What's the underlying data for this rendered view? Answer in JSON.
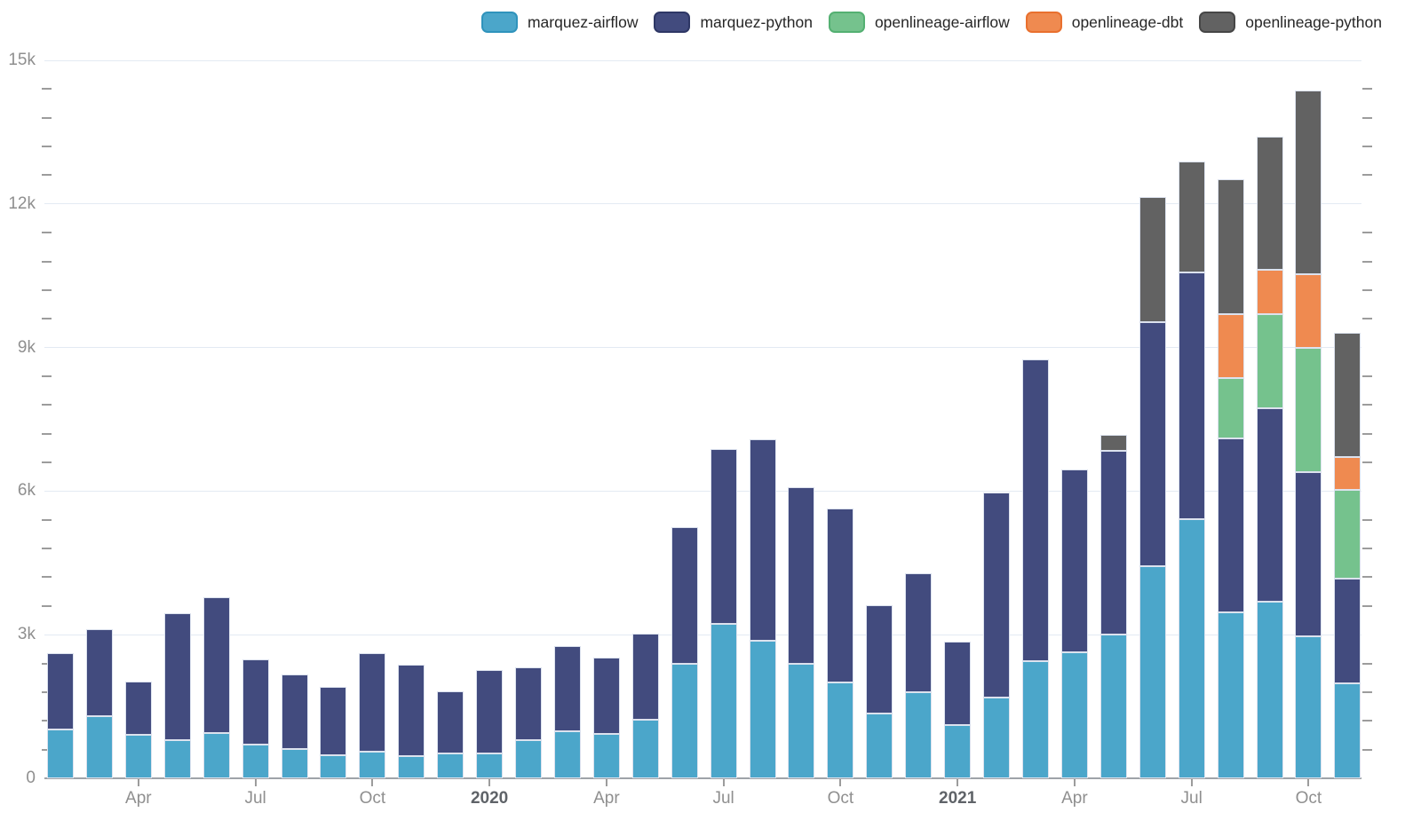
{
  "legend": {
    "items": [
      {
        "label": "marquez-airflow",
        "color": "#4BA6CA",
        "border": "#2F93BC"
      },
      {
        "label": "marquez-python",
        "color": "#424B7E",
        "border": "#2E3765"
      },
      {
        "label": "openlineage-airflow",
        "color": "#75C28D",
        "border": "#54B072"
      },
      {
        "label": "openlineage-dbt",
        "color": "#EF8A50",
        "border": "#E9702E"
      },
      {
        "label": "openlineage-python",
        "color": "#626262",
        "border": "#464646"
      }
    ]
  },
  "theme": {
    "background": "#FFFFFF",
    "gridline": "#E3EAF3",
    "axis_line": "#9EA3A8",
    "tick_mark": "#9C9C9C",
    "axis_label": "#8F8F8F",
    "year_label": "#5F6368",
    "legend_text": "#262626"
  },
  "chart_data": {
    "type": "bar",
    "stacked": true,
    "title": "",
    "xlabel": "",
    "ylabel": "",
    "ylim": [
      0,
      15000
    ],
    "y_axis": {
      "major_tick_values": [
        0,
        3000,
        6000,
        9000,
        12000,
        15000
      ],
      "major_tick_labels": [
        "0",
        "3k",
        "6k",
        "9k",
        "12k",
        "15k"
      ],
      "minor_tick_step": 600,
      "grid": true
    },
    "x_axis": {
      "ticks": [
        {
          "label": "Apr",
          "month": 2,
          "bold": false
        },
        {
          "label": "Jul",
          "month": 5,
          "bold": false
        },
        {
          "label": "Oct",
          "month": 8,
          "bold": false
        },
        {
          "label": "2020",
          "month": 11,
          "bold": true
        },
        {
          "label": "Apr",
          "month": 14,
          "bold": false
        },
        {
          "label": "Jul",
          "month": 17,
          "bold": false
        },
        {
          "label": "Oct",
          "month": 20,
          "bold": false
        },
        {
          "label": "2021",
          "month": 23,
          "bold": true
        },
        {
          "label": "Apr",
          "month": 26,
          "bold": false
        },
        {
          "label": "Jul",
          "month": 29,
          "bold": false
        },
        {
          "label": "Oct",
          "month": 32,
          "bold": false
        }
      ]
    },
    "categories": [
      "Feb 2019",
      "Mar 2019",
      "Apr 2019",
      "May 2019",
      "Jun 2019",
      "Jul 2019",
      "Aug 2019",
      "Sep 2019",
      "Oct 2019",
      "Nov 2019",
      "Dec 2019",
      "Jan 2020",
      "Feb 2020",
      "Mar 2020",
      "Apr 2020",
      "May 2020",
      "Jun 2020",
      "Jul 2020",
      "Aug 2020",
      "Sep 2020",
      "Oct 2020",
      "Nov 2020",
      "Dec 2020",
      "Jan 2021",
      "Feb 2021",
      "Mar 2021",
      "Apr 2021",
      "May 2021",
      "Jun 2021",
      "Jul 2021",
      "Aug 2021",
      "Sep 2021",
      "Oct 2021",
      "Nov 2021"
    ],
    "series": [
      {
        "name": "marquez-airflow",
        "values": [
          1020,
          1290,
          900,
          790,
          950,
          710,
          620,
          490,
          560,
          460,
          510,
          510,
          790,
          980,
          930,
          1220,
          2400,
          3220,
          2880,
          2400,
          2010,
          1350,
          1800,
          1110,
          1680,
          2440,
          2630,
          3000,
          4430,
          5410,
          3470,
          3690,
          2960,
          1990
        ]
      },
      {
        "name": "marquez-python",
        "values": [
          1590,
          1820,
          1130,
          2660,
          2830,
          1780,
          1550,
          1420,
          2050,
          1920,
          1310,
          1760,
          1520,
          1790,
          1590,
          1800,
          2850,
          3660,
          4200,
          3680,
          3630,
          2260,
          2480,
          1750,
          4290,
          6320,
          3820,
          3840,
          5100,
          5150,
          3640,
          4050,
          3440,
          2180
        ]
      },
      {
        "name": "openlineage-airflow",
        "values": [
          0,
          0,
          0,
          0,
          0,
          0,
          0,
          0,
          0,
          0,
          0,
          0,
          0,
          0,
          0,
          0,
          0,
          0,
          0,
          0,
          0,
          0,
          0,
          0,
          0,
          0,
          0,
          0,
          0,
          0,
          1250,
          1960,
          2600,
          1860
        ]
      },
      {
        "name": "openlineage-dbt",
        "values": [
          0,
          0,
          0,
          0,
          0,
          0,
          0,
          0,
          0,
          0,
          0,
          0,
          0,
          0,
          0,
          0,
          0,
          0,
          0,
          0,
          0,
          0,
          0,
          0,
          0,
          0,
          0,
          0,
          0,
          0,
          1330,
          930,
          1530,
          680
        ]
      },
      {
        "name": "openlineage-python",
        "values": [
          0,
          0,
          0,
          0,
          0,
          0,
          0,
          0,
          0,
          0,
          0,
          0,
          0,
          0,
          0,
          0,
          0,
          0,
          0,
          0,
          0,
          0,
          0,
          0,
          0,
          0,
          0,
          330,
          2610,
          2330,
          2830,
          2770,
          3840,
          2600
        ]
      }
    ],
    "legend_position": "top-right"
  }
}
